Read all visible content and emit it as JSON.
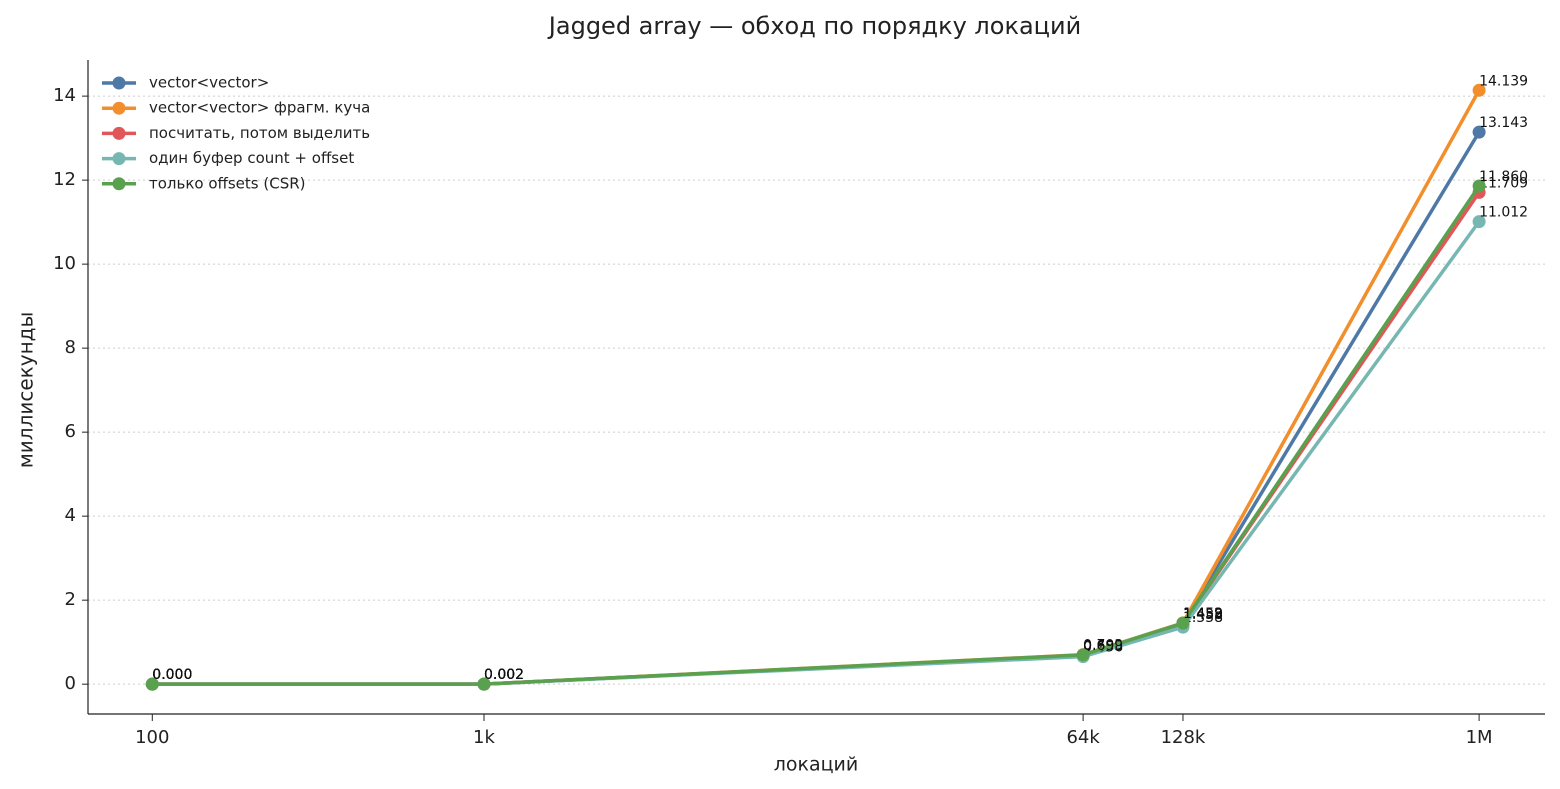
{
  "chart_data": {
    "type": "line",
    "title": "Jagged array — обход по порядку локаций",
    "x_label": "локаций",
    "y_label": "миллисекунды",
    "x": [
      100,
      1000,
      64000,
      128000,
      1000000
    ],
    "xscale": "log",
    "xlim": [
      64,
      1580000
    ],
    "xticks": [
      {
        "value": 100,
        "label": "100"
      },
      {
        "value": 1000,
        "label": "1k"
      },
      {
        "value": 64000,
        "label": "64k"
      },
      {
        "value": 128000,
        "label": "128k"
      },
      {
        "value": 1000000,
        "label": "1M"
      }
    ],
    "ylim": [
      -0.71,
      14.86
    ],
    "yticks": [
      0,
      2,
      4,
      6,
      8,
      10,
      12,
      14
    ],
    "grid": true,
    "legend": "upper left",
    "series": [
      {
        "name": "vector<vector>",
        "color": "#4e79a7",
        "values": [
          0,
          0.002,
          0.689,
          1.452,
          13.143
        ],
        "value_labels": [
          "0.000",
          "0.002",
          "0.689",
          "1.452",
          "13.143"
        ]
      },
      {
        "name": "vector<vector> фрагм. куча",
        "color": "#f28e2b",
        "values": [
          0,
          0.002,
          0.703,
          1.459,
          14.139
        ],
        "value_labels": [
          "0.000",
          "0.002",
          "0.703",
          "1.459",
          "14.139"
        ]
      },
      {
        "name": "посчитать, потом выделить",
        "color": "#e15759",
        "values": [
          0,
          0.002,
          0.683,
          1.438,
          11.709
        ],
        "value_labels": [
          "0.000",
          "0.002",
          "0.683",
          "1.438",
          "11.709"
        ]
      },
      {
        "name": "один буфер count + offset",
        "color": "#76b7b2",
        "values": [
          0,
          0.002,
          0.656,
          1.358,
          11.012
        ],
        "value_labels": [
          "0.000",
          "0.002",
          "0.656",
          "1.358",
          "11.012"
        ]
      },
      {
        "name": "только offsets (CSR)",
        "color": "#59a14f",
        "values": [
          0,
          0.002,
          0.699,
          1.453,
          11.86
        ],
        "value_labels": [
          "0.000",
          "0.002",
          "0.699",
          "1.453",
          "11.860"
        ]
      }
    ]
  }
}
